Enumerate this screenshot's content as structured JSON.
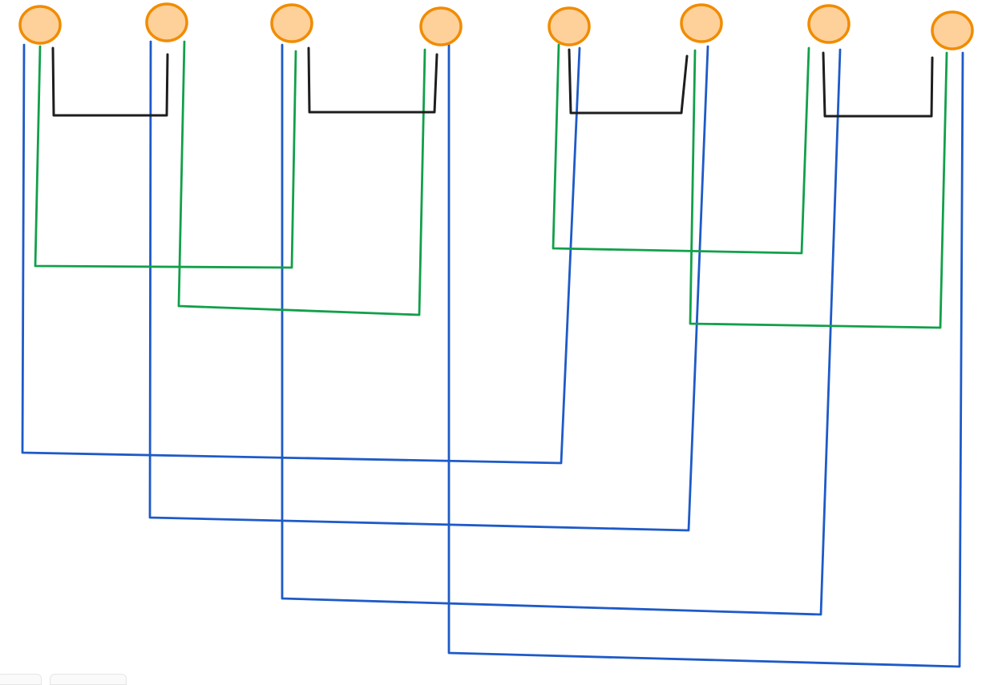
{
  "diagram": {
    "description_free": true,
    "colors": {
      "node_fill": "#fed09a",
      "node_stroke": "#f08c00",
      "pair_stroke": "#1e1e1e",
      "cross_stroke": "#12a04a",
      "span_stroke": "#1e5ac8",
      "background": "#ffffff"
    },
    "node_count": 8,
    "connections": {
      "black": [
        [
          0,
          1
        ],
        [
          2,
          3
        ],
        [
          4,
          5
        ],
        [
          6,
          7
        ]
      ],
      "green": [
        [
          0,
          2
        ],
        [
          1,
          3
        ],
        [
          4,
          6
        ],
        [
          5,
          7
        ]
      ],
      "blue": [
        [
          0,
          4
        ],
        [
          1,
          5
        ],
        [
          2,
          6
        ],
        [
          3,
          7
        ]
      ]
    }
  }
}
